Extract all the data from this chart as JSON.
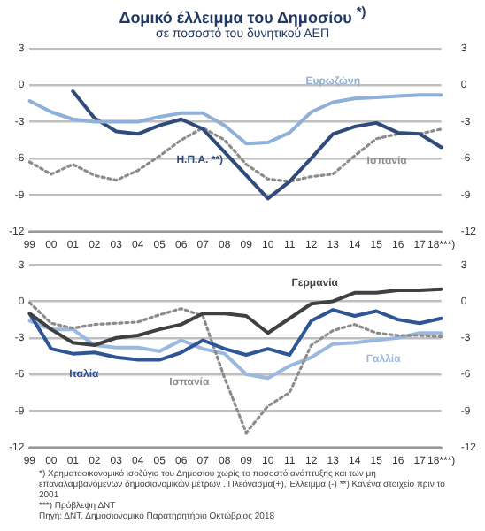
{
  "chart_data": [
    {
      "type": "line",
      "title": "Δομικό έλλειμμα του Δημοσίου $^{*)}$",
      "subtitle": "σε ποσοστό του δυνητικού ΑΕΠ",
      "categories": [
        "99",
        "00",
        "01",
        "02",
        "03",
        "04",
        "05",
        "06",
        "07",
        "08",
        "09",
        "10",
        "11",
        "12",
        "13",
        "14",
        "15",
        "16",
        "17",
        "18***)"
      ],
      "series": [
        {
          "name": "Ευρωζώνη",
          "color": "#8fb0d8",
          "values": [
            -1.3,
            -2.2,
            -2.8,
            -3.0,
            -3.0,
            -3.0,
            -2.6,
            -2.3,
            -2.3,
            -3.3,
            -4.8,
            -4.7,
            -3.9,
            -2.2,
            -1.4,
            -1.1,
            -1.0,
            -0.9,
            -0.8,
            -0.8
          ]
        },
        {
          "name": "Η.Π.Α. **)",
          "color": "#2f4b7c",
          "values": [
            null,
            null,
            -0.5,
            -2.7,
            -3.8,
            -4.0,
            -3.3,
            -2.8,
            -3.6,
            -5.5,
            -7.4,
            -9.3,
            -7.9,
            -6.0,
            -4.0,
            -3.4,
            -3.1,
            -3.9,
            -4.0,
            -5.1
          ]
        },
        {
          "name": "Ισπανία",
          "color": "#8c8c8c",
          "line_style": "dotted",
          "values": [
            -6.3,
            -7.3,
            -6.5,
            -7.4,
            -7.8,
            -7.0,
            -5.8,
            -4.5,
            -3.5,
            -4.5,
            -6.5,
            -7.7,
            -7.9,
            -7.5,
            -7.3,
            -5.8,
            -4.4,
            -4.0,
            -4.0,
            -3.6
          ]
        }
      ],
      "ylim": [
        -12,
        3
      ],
      "yticks": [
        -12,
        -9,
        -6,
        -3,
        0,
        3
      ],
      "y2lim": [
        -12,
        3
      ],
      "y2ticks": [
        -12,
        -9,
        -6,
        -3,
        0,
        3
      ],
      "grid": "y",
      "legend": false,
      "marker": "none",
      "line_style": "solid"
    },
    {
      "type": "line",
      "categories": [
        "99",
        "00",
        "01",
        "02",
        "03",
        "04",
        "05",
        "06",
        "07",
        "08",
        "09",
        "10",
        "11",
        "12",
        "13",
        "14",
        "15",
        "16",
        "17",
        "18***)"
      ],
      "series": [
        {
          "name": "Γερμανία",
          "color": "#404040",
          "values": [
            -1.0,
            -2.3,
            -3.4,
            -3.6,
            -3.0,
            -2.8,
            -2.3,
            -1.9,
            -1.0,
            -1.0,
            -1.2,
            -2.6,
            -1.4,
            -0.2,
            0.0,
            0.7,
            0.7,
            0.9,
            0.9,
            1.0
          ]
        },
        {
          "name": "Ιταλία",
          "color": "#2e5597",
          "values": [
            -1.0,
            -3.9,
            -4.3,
            -4.2,
            -4.6,
            -4.8,
            -4.8,
            -4.2,
            -3.2,
            -3.9,
            -4.4,
            -3.9,
            -4.4,
            -1.6,
            -0.7,
            -1.2,
            -0.8,
            -1.5,
            -1.8,
            -1.4
          ]
        },
        {
          "name": "Ισπανία",
          "color": "#8c8c8c",
          "line_style": "dotted",
          "values": [
            -0.1,
            -1.8,
            -2.2,
            -1.9,
            -1.8,
            -1.7,
            -1.1,
            -0.6,
            -1.2,
            -6.3,
            -10.8,
            -8.6,
            -7.5,
            -3.6,
            -2.4,
            -1.9,
            -2.6,
            -2.8,
            -2.8,
            -2.9
          ]
        },
        {
          "name": "Γαλλία",
          "color": "#9ab8e0",
          "values": [
            -1.6,
            -2.3,
            -2.3,
            -3.6,
            -3.8,
            -3.8,
            -4.1,
            -3.2,
            -3.9,
            -4.3,
            -6.0,
            -6.3,
            -5.3,
            -4.6,
            -3.5,
            -3.4,
            -3.2,
            -3.0,
            -2.6,
            -2.6
          ]
        }
      ],
      "ylim": [
        -12,
        3
      ],
      "yticks": [
        -12,
        -9,
        -6,
        -3,
        0,
        3
      ],
      "y2lim": [
        -12,
        3
      ],
      "y2ticks": [
        -12,
        -9,
        -6,
        -3,
        0,
        3
      ],
      "grid": "y",
      "legend": false,
      "marker": "none",
      "line_style": "solid",
      "annotations": [
        "*) Χρηματοοικονομικό ισοζύγιο του Δημοσίου χωρίς το ποσοστό ανάπτυξης και των μη επαναλαμβανόμενων δημοσιονομικών μέτρων . Πλεόνασμα(+), Έλλειμμα (-)   **) Κανένα στοιχείο πριν το 2001",
        "***) Πρόβλεψη ΔΝΤ",
        "Πηγή: ΔΝΤ, Δημοσιονομικό Παρατηρητήριο Οκτώβριος 2018"
      ]
    }
  ]
}
